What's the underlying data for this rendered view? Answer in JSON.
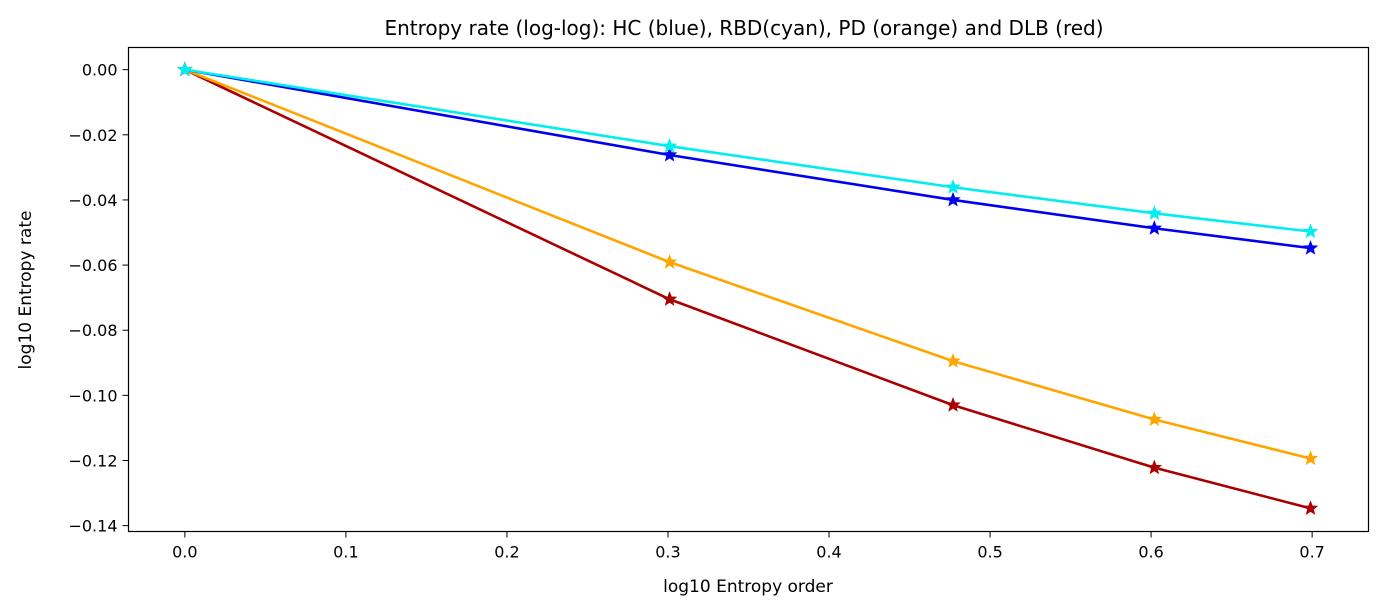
{
  "chart_data": {
    "type": "line",
    "title": "Entropy rate (log-log): HC (blue), RBD(cyan), PD (orange) and DLB (red)",
    "xlabel": "log10 Entropy order",
    "ylabel": "log10 Entropy rate",
    "xlim": [
      -0.035,
      0.735
    ],
    "ylim": [
      -0.1418,
      0.0068
    ],
    "xticks": [
      0.0,
      0.1,
      0.2,
      0.3,
      0.4,
      0.5,
      0.6,
      0.7
    ],
    "xtick_labels": [
      "0.0",
      "0.1",
      "0.2",
      "0.3",
      "0.4",
      "0.5",
      "0.6",
      "0.7"
    ],
    "yticks": [
      0.0,
      -0.02,
      -0.04,
      -0.06,
      -0.08,
      -0.1,
      -0.12,
      -0.14
    ],
    "ytick_labels": [
      "0.00",
      "−0.02",
      "−0.04",
      "−0.06",
      "−0.08",
      "−0.10",
      "−0.12",
      "−0.14"
    ],
    "x": [
      0.0,
      0.301,
      0.477,
      0.602,
      0.699
    ],
    "marker": "star",
    "grid": false,
    "legend": "none",
    "series": [
      {
        "color": "#aa0000",
        "values": [
          0.0,
          -0.0705,
          -0.103,
          -0.1222,
          -0.1347
        ]
      },
      {
        "color": "#ffa500",
        "values": [
          0.0,
          -0.0591,
          -0.0895,
          -0.1074,
          -0.1194
        ]
      },
      {
        "color": "#0000ee",
        "values": [
          0.0,
          -0.0262,
          -0.04,
          -0.0487,
          -0.0548
        ]
      },
      {
        "color": "#00eeee",
        "values": [
          0.0,
          -0.0235,
          -0.0361,
          -0.0441,
          -0.0497
        ]
      }
    ]
  }
}
